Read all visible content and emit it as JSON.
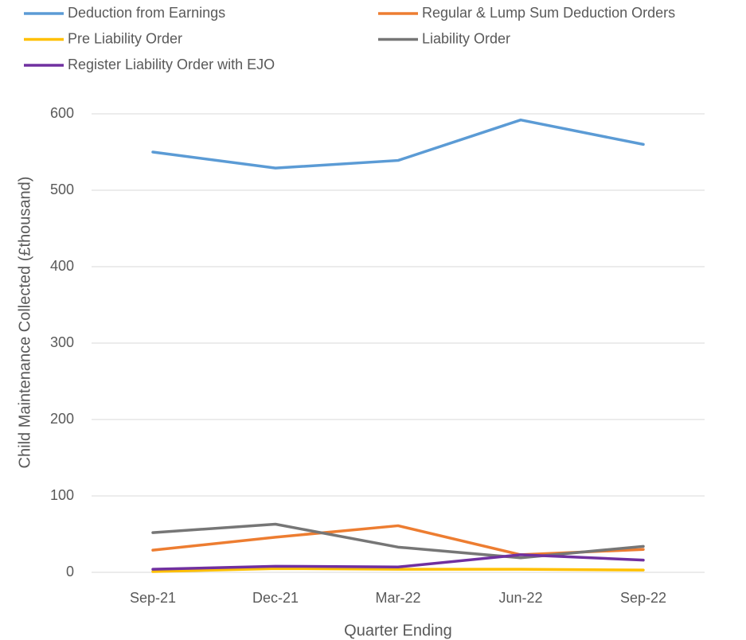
{
  "chart_data": {
    "type": "line",
    "x_label": "Quarter Ending",
    "y_label": "Child Maintenance Collected (£thousand)",
    "categories": [
      "Sep-21",
      "Dec-21",
      "Mar-22",
      "Jun-22",
      "Sep-22"
    ],
    "series": [
      {
        "name": "Deduction from Earnings",
        "color": "#5b9bd5",
        "values": [
          550,
          529,
          539,
          592,
          560
        ]
      },
      {
        "name": "Regular & Lump Sum Deduction Orders",
        "color": "#ed7d31",
        "values": [
          29,
          46,
          61,
          23,
          30
        ]
      },
      {
        "name": "Pre Liability Order",
        "color": "#ffc000",
        "values": [
          1,
          5,
          4,
          4,
          3
        ]
      },
      {
        "name": "Liability Order",
        "color": "#767676",
        "values": [
          52,
          63,
          33,
          19,
          34
        ]
      },
      {
        "name": "Register Liability Order with EJO",
        "color": "#7030a0",
        "values": [
          4,
          8,
          7,
          23,
          16
        ]
      }
    ],
    "ylim": [
      0,
      600
    ],
    "yticks": [
      0,
      100,
      200,
      300,
      400,
      500,
      600
    ],
    "grid": true
  }
}
